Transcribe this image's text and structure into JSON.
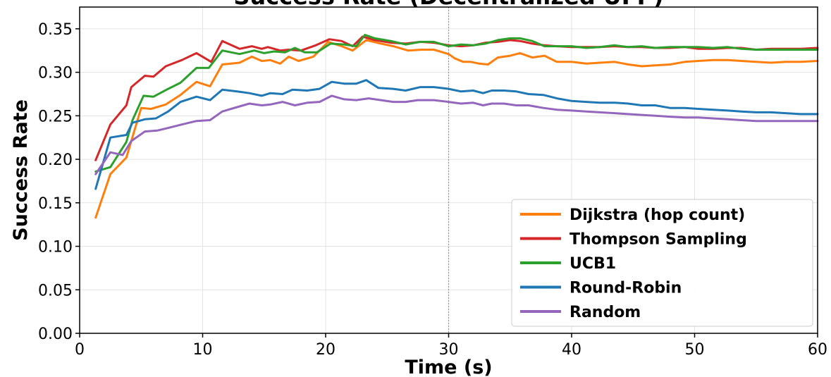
{
  "chart_data": {
    "type": "line",
    "title": "Success Rate (Decentralized UFP)",
    "xlabel": "Time (s)",
    "ylabel": "Success Rate",
    "xlim": [
      0,
      60
    ],
    "ylim": [
      0,
      0.375
    ],
    "xticks": [
      0,
      10,
      20,
      30,
      40,
      50,
      60
    ],
    "xtick_labels": [
      "0",
      "10",
      "20",
      "30",
      "40",
      "50",
      "60"
    ],
    "yticks": [
      0.0,
      0.05,
      0.1,
      0.15,
      0.2,
      0.25,
      0.3,
      0.35
    ],
    "ytick_labels": [
      "0.00",
      "0.05",
      "0.10",
      "0.15",
      "0.20",
      "0.25",
      "0.30",
      "0.35"
    ],
    "grid": true,
    "vline_x": 30,
    "legend_position": "lower-right",
    "series": [
      {
        "name": "Dijkstra (hop count)",
        "color": "#ff7f0e",
        "x": [
          1.3,
          2.5,
          3.8,
          5.0,
          5.8,
          7.0,
          8.2,
          9.5,
          10.6,
          11.6,
          13.0,
          14.0,
          14.8,
          15.5,
          16.3,
          17.0,
          17.8,
          19.0,
          20.2,
          21.3,
          22.2,
          23.3,
          24.5,
          25.5,
          26.7,
          27.8,
          28.8,
          30.0,
          30.5,
          31.2,
          31.8,
          32.5,
          33.2,
          34.0,
          35.0,
          35.8,
          36.8,
          37.8,
          38.8,
          40.0,
          41.2,
          42.3,
          43.5,
          44.6,
          45.7,
          46.8,
          48.0,
          49.2,
          50.3,
          51.5,
          52.7,
          53.8,
          55.0,
          56.2,
          57.4,
          58.6,
          60.0
        ],
        "y": [
          0.133,
          0.183,
          0.202,
          0.259,
          0.258,
          0.263,
          0.274,
          0.289,
          0.284,
          0.309,
          0.311,
          0.318,
          0.313,
          0.314,
          0.31,
          0.318,
          0.313,
          0.318,
          0.335,
          0.33,
          0.325,
          0.337,
          0.333,
          0.33,
          0.325,
          0.326,
          0.326,
          0.321,
          0.316,
          0.312,
          0.312,
          0.31,
          0.309,
          0.317,
          0.319,
          0.322,
          0.317,
          0.319,
          0.312,
          0.312,
          0.31,
          0.311,
          0.312,
          0.309,
          0.307,
          0.308,
          0.309,
          0.312,
          0.313,
          0.314,
          0.314,
          0.313,
          0.312,
          0.311,
          0.312,
          0.312,
          0.313
        ]
      },
      {
        "name": "Thompson Sampling",
        "color": "#d62728",
        "x": [
          1.3,
          2.5,
          3.8,
          4.2,
          5.3,
          6.0,
          7.0,
          8.3,
          9.5,
          10.7,
          11.6,
          13.0,
          14.0,
          14.8,
          15.3,
          16.3,
          17.0,
          18.0,
          19.2,
          20.3,
          21.3,
          22.2,
          23.0,
          24.0,
          25.3,
          26.5,
          27.7,
          28.8,
          30.0,
          31.0,
          32.0,
          33.0,
          34.0,
          35.0,
          35.8,
          36.8,
          37.8,
          38.8,
          40.0,
          41.2,
          42.3,
          43.5,
          44.6,
          45.7,
          46.8,
          48.0,
          49.2,
          50.3,
          51.5,
          52.7,
          53.8,
          55.0,
          56.2,
          57.4,
          58.6,
          60.0
        ],
        "y": [
          0.199,
          0.24,
          0.262,
          0.283,
          0.296,
          0.295,
          0.307,
          0.314,
          0.322,
          0.312,
          0.336,
          0.327,
          0.33,
          0.327,
          0.329,
          0.325,
          0.326,
          0.325,
          0.331,
          0.338,
          0.336,
          0.33,
          0.341,
          0.337,
          0.334,
          0.333,
          0.335,
          0.334,
          0.331,
          0.33,
          0.331,
          0.334,
          0.335,
          0.337,
          0.336,
          0.333,
          0.331,
          0.33,
          0.329,
          0.329,
          0.329,
          0.33,
          0.329,
          0.329,
          0.328,
          0.328,
          0.329,
          0.327,
          0.327,
          0.328,
          0.328,
          0.326,
          0.327,
          0.327,
          0.327,
          0.328
        ]
      },
      {
        "name": "UCB1",
        "color": "#2ca02c",
        "x": [
          1.3,
          2.5,
          3.8,
          4.3,
          5.2,
          6.0,
          7.2,
          8.2,
          9.5,
          10.5,
          11.6,
          13.0,
          14.2,
          15.0,
          15.8,
          16.7,
          17.5,
          18.3,
          19.3,
          20.4,
          21.5,
          22.5,
          23.2,
          24.0,
          25.3,
          26.5,
          27.7,
          28.8,
          30.0,
          31.0,
          32.0,
          33.0,
          34.0,
          35.0,
          35.8,
          36.8,
          37.8,
          38.8,
          40.0,
          41.2,
          42.3,
          43.5,
          44.6,
          45.7,
          46.8,
          48.0,
          49.2,
          50.3,
          51.5,
          52.7,
          53.8,
          55.0,
          56.2,
          57.4,
          58.6,
          60.0
        ],
        "y": [
          0.186,
          0.191,
          0.22,
          0.245,
          0.273,
          0.272,
          0.281,
          0.288,
          0.305,
          0.305,
          0.325,
          0.321,
          0.325,
          0.322,
          0.324,
          0.323,
          0.328,
          0.323,
          0.323,
          0.333,
          0.332,
          0.33,
          0.343,
          0.339,
          0.336,
          0.332,
          0.335,
          0.335,
          0.33,
          0.332,
          0.331,
          0.333,
          0.337,
          0.339,
          0.339,
          0.336,
          0.33,
          0.33,
          0.33,
          0.328,
          0.329,
          0.331,
          0.329,
          0.33,
          0.328,
          0.329,
          0.329,
          0.329,
          0.328,
          0.329,
          0.327,
          0.326,
          0.326,
          0.326,
          0.326,
          0.326
        ]
      },
      {
        "name": "Round-Robin",
        "color": "#1f77b4",
        "x": [
          1.3,
          2.5,
          3.8,
          4.3,
          5.3,
          6.2,
          7.2,
          8.2,
          9.5,
          10.6,
          11.6,
          12.8,
          13.8,
          14.8,
          15.5,
          16.5,
          17.3,
          18.5,
          19.5,
          20.5,
          21.5,
          22.5,
          23.3,
          24.3,
          25.5,
          26.5,
          27.7,
          28.8,
          30.0,
          31.0,
          32.0,
          32.8,
          33.5,
          34.5,
          35.5,
          36.5,
          37.7,
          38.8,
          40.0,
          41.2,
          42.3,
          43.5,
          44.6,
          45.7,
          46.8,
          48.0,
          49.2,
          50.3,
          51.5,
          52.7,
          53.8,
          55.0,
          56.2,
          57.4,
          58.6,
          60.0
        ],
        "y": [
          0.166,
          0.225,
          0.228,
          0.242,
          0.246,
          0.247,
          0.255,
          0.266,
          0.272,
          0.268,
          0.28,
          0.278,
          0.276,
          0.273,
          0.276,
          0.275,
          0.28,
          0.279,
          0.281,
          0.289,
          0.287,
          0.287,
          0.291,
          0.282,
          0.281,
          0.279,
          0.283,
          0.283,
          0.281,
          0.278,
          0.279,
          0.276,
          0.279,
          0.279,
          0.278,
          0.275,
          0.274,
          0.27,
          0.267,
          0.266,
          0.265,
          0.265,
          0.264,
          0.262,
          0.262,
          0.259,
          0.259,
          0.258,
          0.257,
          0.256,
          0.255,
          0.254,
          0.254,
          0.253,
          0.252,
          0.252
        ]
      },
      {
        "name": "Random",
        "color": "#9467bd",
        "x": [
          1.3,
          2.5,
          3.5,
          4.2,
          5.3,
          6.3,
          7.2,
          8.3,
          9.5,
          10.6,
          11.6,
          12.8,
          13.8,
          14.8,
          15.5,
          16.5,
          17.5,
          18.5,
          19.5,
          20.5,
          21.5,
          22.5,
          23.5,
          24.5,
          25.5,
          26.5,
          27.5,
          28.8,
          30.0,
          31.0,
          32.0,
          32.8,
          33.5,
          34.5,
          35.5,
          36.5,
          37.7,
          38.8,
          40.0,
          41.2,
          42.3,
          43.5,
          44.6,
          45.7,
          46.8,
          48.0,
          49.2,
          50.3,
          51.5,
          52.7,
          53.8,
          55.0,
          56.2,
          57.4,
          58.6,
          60.0
        ],
        "y": [
          0.183,
          0.208,
          0.205,
          0.221,
          0.232,
          0.233,
          0.236,
          0.24,
          0.244,
          0.245,
          0.255,
          0.26,
          0.264,
          0.262,
          0.263,
          0.266,
          0.262,
          0.265,
          0.266,
          0.273,
          0.269,
          0.268,
          0.27,
          0.268,
          0.266,
          0.266,
          0.268,
          0.268,
          0.266,
          0.264,
          0.265,
          0.262,
          0.264,
          0.264,
          0.262,
          0.262,
          0.259,
          0.257,
          0.256,
          0.255,
          0.254,
          0.253,
          0.252,
          0.251,
          0.25,
          0.249,
          0.248,
          0.248,
          0.247,
          0.246,
          0.245,
          0.244,
          0.244,
          0.244,
          0.244,
          0.244
        ]
      }
    ]
  }
}
